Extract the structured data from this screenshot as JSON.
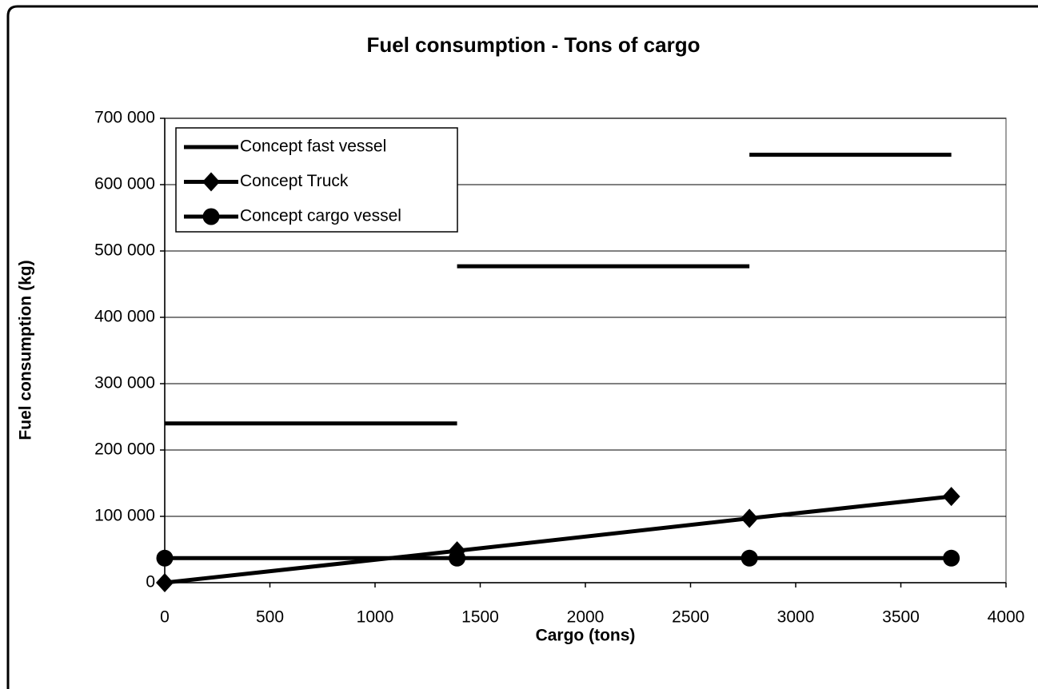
{
  "chart_data": {
    "type": "line",
    "title": "Fuel consumption - Tons of cargo",
    "xlabel": "Cargo (tons)",
    "ylabel": "Fuel consumption (kg)",
    "xlim": [
      0,
      4000
    ],
    "xticks": [
      0,
      500,
      1000,
      1500,
      2000,
      2500,
      3000,
      3500,
      4000
    ],
    "ylim": [
      0,
      700000
    ],
    "yticks": [
      0,
      {
        "value": 100000,
        "label": "100 000"
      },
      {
        "value": 200000,
        "label": "200 000"
      },
      {
        "value": 300000,
        "label": "300 000"
      },
      {
        "value": 400000,
        "label": "400 000"
      },
      {
        "value": 500000,
        "label": "500 000"
      },
      {
        "value": 600000,
        "label": "600 000"
      },
      {
        "value": 700000,
        "label": "700 000"
      }
    ],
    "grid": true,
    "legend": "upper left",
    "series": [
      {
        "name": "Concept fast vessel",
        "color": "#000000",
        "marker": "none",
        "x": [
          0,
          1390,
          null,
          1390,
          2780,
          null,
          2780,
          3740
        ],
        "values": [
          240000,
          240000,
          null,
          477000,
          477000,
          null,
          645000,
          645000
        ]
      },
      {
        "name": "Concept Truck",
        "color": "#000000",
        "marker": "diamond",
        "x": [
          0,
          1390,
          2780,
          3740
        ],
        "values": [
          0,
          48000,
          97000,
          130000
        ]
      },
      {
        "name": "Concept cargo vessel",
        "color": "#000000",
        "marker": "circle",
        "x": [
          0,
          1390,
          2780,
          3740
        ],
        "values": [
          37000,
          37000,
          37000,
          37000
        ]
      }
    ]
  }
}
